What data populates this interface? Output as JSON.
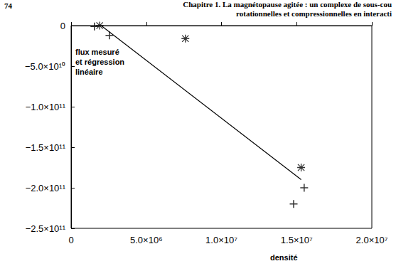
{
  "header": {
    "page": "74",
    "lines": [
      "Chapitre 1. La magnétopause agitée : un complexe de sous-cou",
      "rotationnelles et compressionnelles en interacti"
    ]
  },
  "chart_data": {
    "type": "scatter",
    "annotation": "flux mesuré\net régression\nlinéaire",
    "x_label": "densité",
    "xlim": [
      0,
      20000000
    ],
    "xticks": [
      0,
      {
        "value": 5000000,
        "label": "5.0×10⁶"
      },
      {
        "value": 10000000,
        "label": "1.0×10⁷"
      },
      {
        "value": 15000000,
        "label": "1.5×10⁷"
      },
      {
        "value": 20000000,
        "label": "2.0×10⁷"
      }
    ],
    "ylim": [
      -250000000000,
      0
    ],
    "yticks": [
      {
        "value": -250000000000,
        "label": "−2.5×10¹¹"
      },
      {
        "value": -200000000000,
        "label": "−2.0×10¹¹"
      },
      {
        "value": -150000000000,
        "label": "−1.5×10¹¹"
      },
      {
        "value": -100000000000,
        "label": "−1.0×10¹¹"
      },
      {
        "value": -50000000000,
        "label": "−5.0×10¹⁰"
      },
      0
    ],
    "grid": false,
    "series": [
      {
        "type": "scatter",
        "marker": "plus",
        "color": "#000000",
        "x": [
          1550000,
          2550000,
          14800000,
          15500000
        ],
        "values": [
          -1000000000,
          -12000000000,
          -220000000000,
          -200000000000
        ]
      },
      {
        "type": "scatter",
        "marker": "asterisk",
        "color": "#000000",
        "x": [
          1900000,
          7600000,
          15300000
        ],
        "values": [
          0,
          -16000000000,
          -175000000000
        ]
      },
      {
        "type": "line",
        "line_style": "solid",
        "color": "#000000",
        "x": [
          2000000,
          15300000
        ],
        "values": [
          0,
          -190000000000
        ]
      }
    ]
  }
}
